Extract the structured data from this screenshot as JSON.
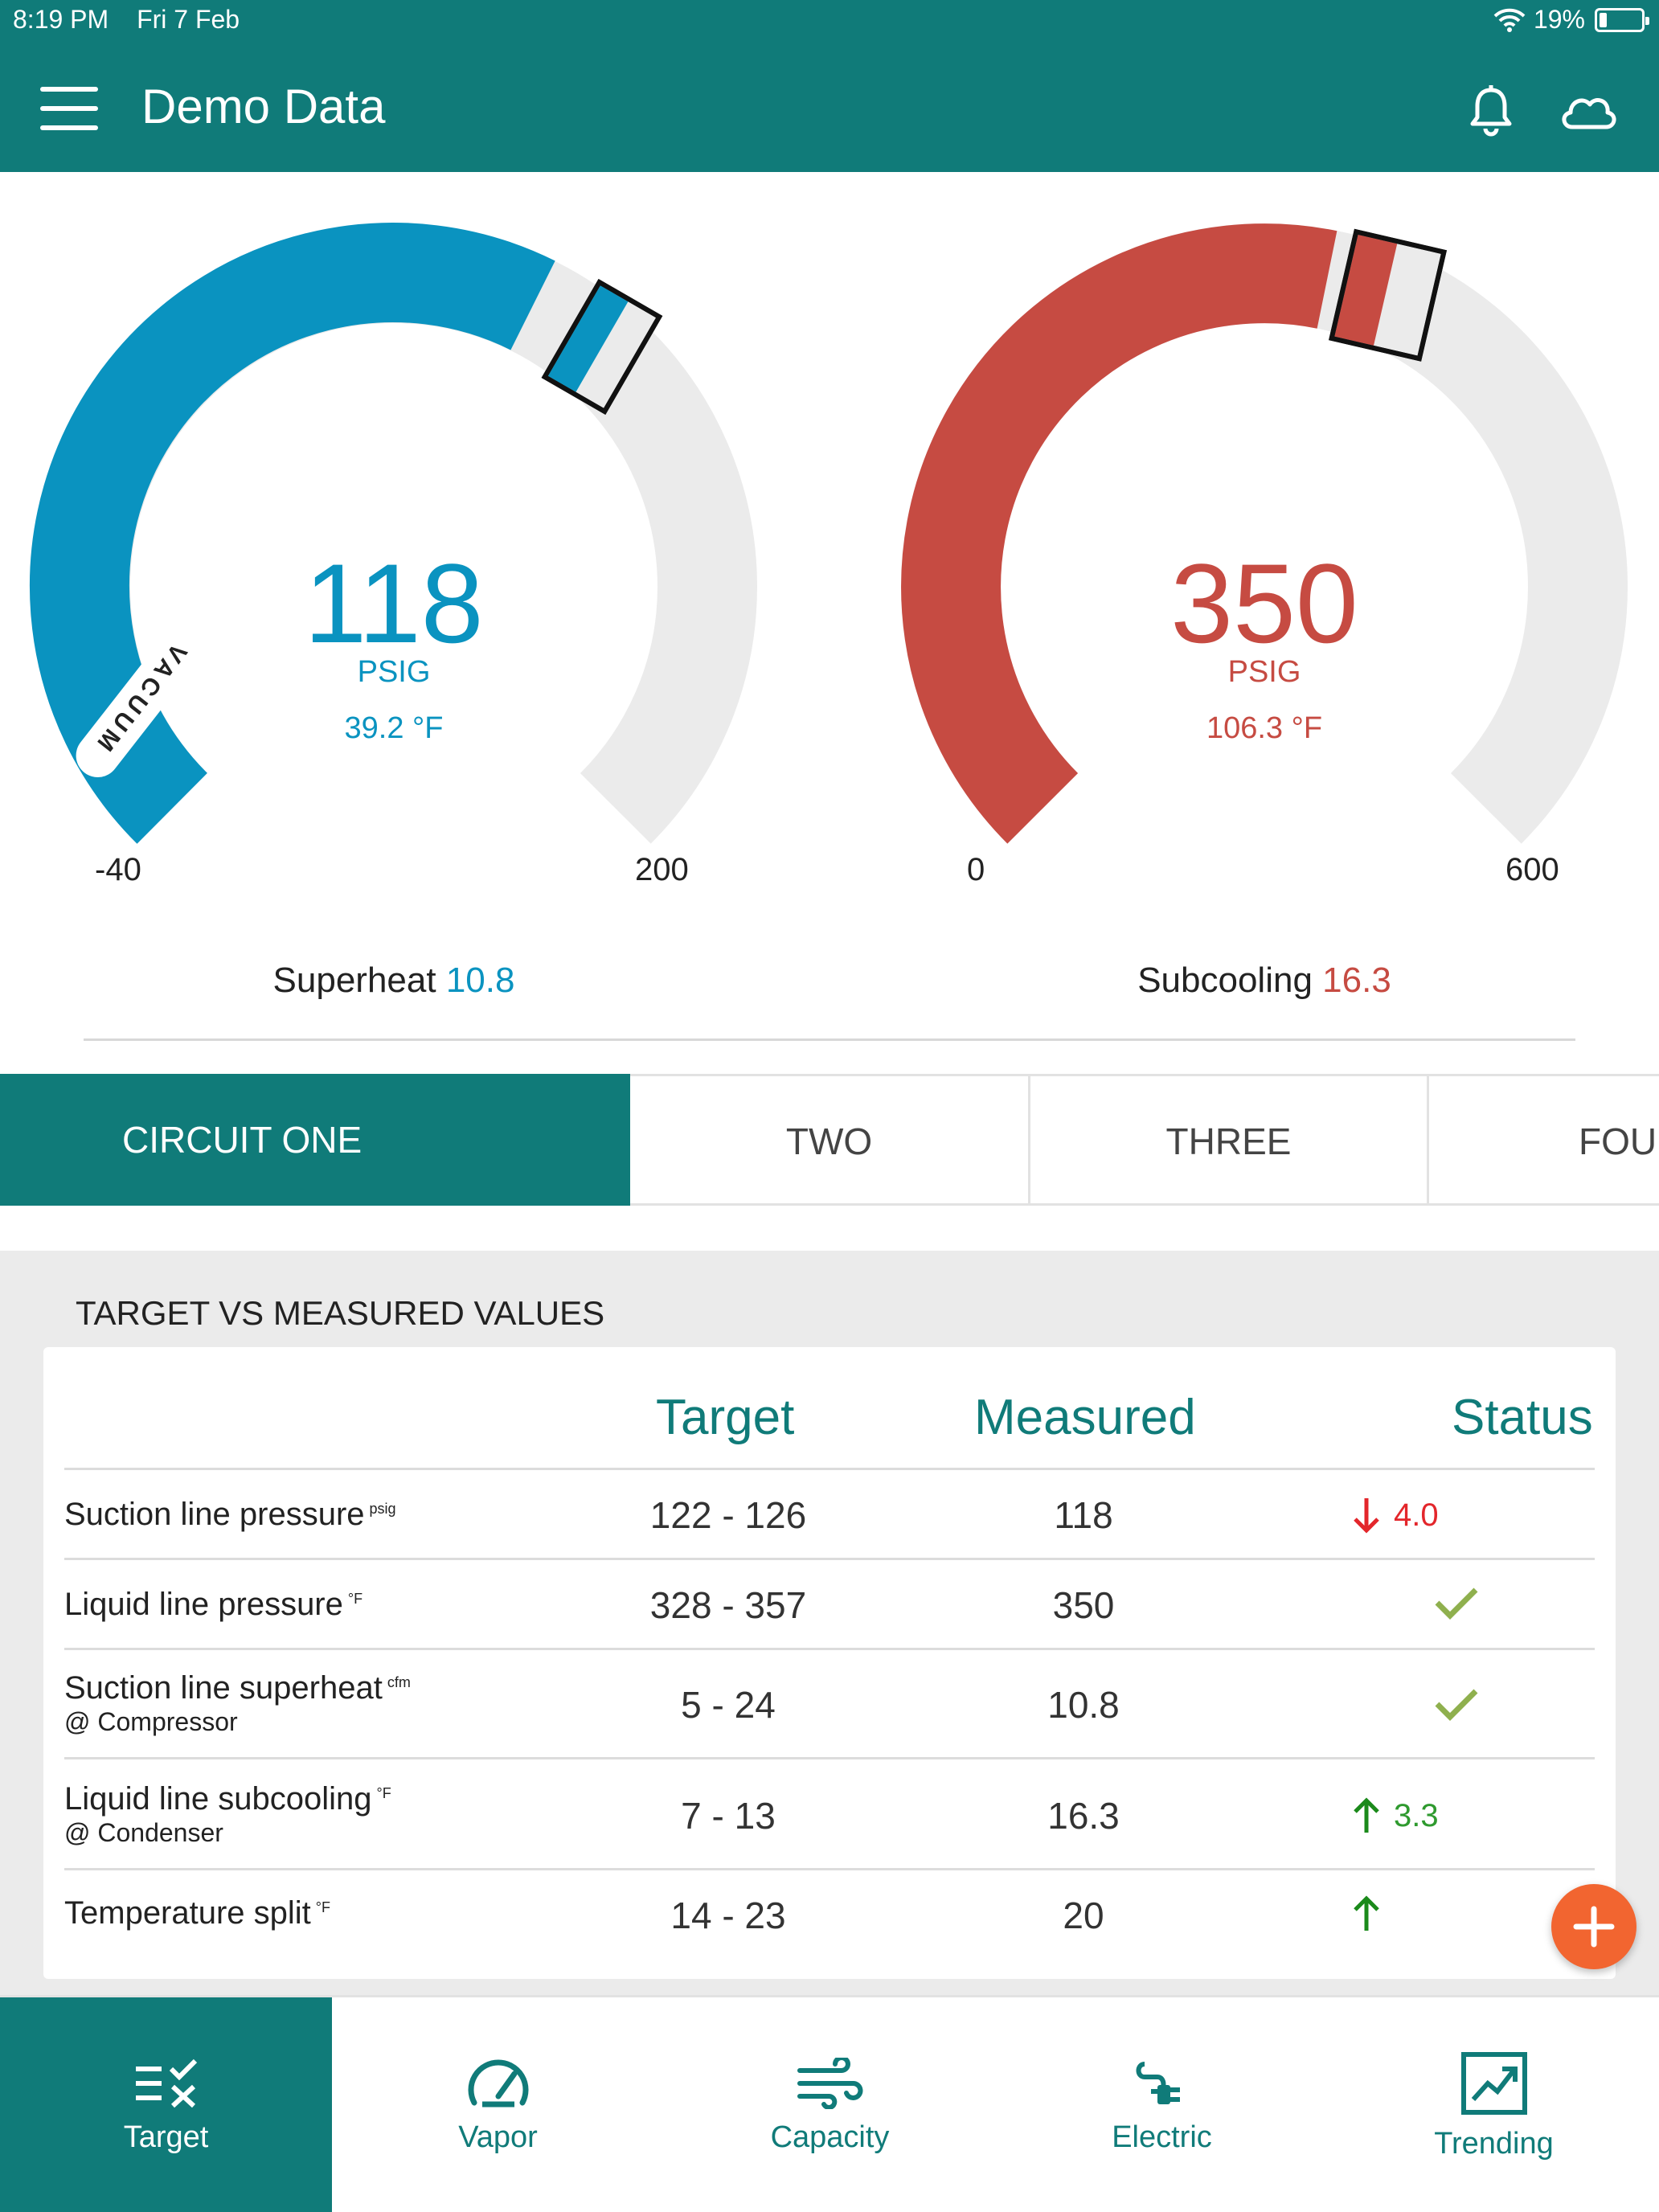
{
  "status_bar": {
    "time": "8:19 PM",
    "date": "Fri 7 Feb",
    "battery": "19%"
  },
  "header": {
    "title": "Demo Data",
    "icons": [
      "menu-icon",
      "bell-icon",
      "cloud-icon"
    ]
  },
  "gauges": [
    {
      "value": "118",
      "unit": "PSIG",
      "temperature": "39.2 °F",
      "min": "-40",
      "max": "200",
      "vacuum_label": "VACUUM",
      "footer_label": "Superheat",
      "footer_value": "10.8",
      "color": "#0a93c0"
    },
    {
      "value": "350",
      "unit": "PSIG",
      "temperature": "106.3 °F",
      "min": "0",
      "max": "600",
      "footer_label": "Subcooling",
      "footer_value": "16.3",
      "color": "#c64b42"
    }
  ],
  "tabs": [
    "CIRCUIT ONE",
    "TWO",
    "THREE",
    "FOUR"
  ],
  "table": {
    "section_title": "TARGET VS MEASURED VALUES",
    "headers": {
      "target": "Target",
      "measured": "Measured",
      "status": "Status"
    },
    "rows": [
      {
        "label": "Suction line pressure",
        "unit": "psig",
        "sub": "",
        "target": "122 - 126",
        "measured": "118",
        "status": "4.0",
        "status_type": "down"
      },
      {
        "label": "Liquid line pressure",
        "unit": "°F",
        "sub": "",
        "target": "328 - 357",
        "measured": "350",
        "status": "",
        "status_type": "ok"
      },
      {
        "label": "Suction line superheat",
        "unit": "cfm",
        "sub": "@ Compressor",
        "target": "5 - 24",
        "measured": "10.8",
        "status": "",
        "status_type": "ok"
      },
      {
        "label": "Liquid line subcooling",
        "unit": "°F",
        "sub": "@ Condenser",
        "target": "7 - 13",
        "measured": "16.3",
        "status": "3.3",
        "status_type": "up"
      },
      {
        "label": "Temperature split",
        "unit": "°F",
        "sub": "",
        "target": "14 - 23",
        "measured": "20",
        "status": "",
        "status_type": "up"
      }
    ]
  },
  "bottom_nav": [
    {
      "label": "Target",
      "icon": "target-list-icon",
      "active": true
    },
    {
      "label": "Vapor",
      "icon": "gauge-icon",
      "active": false
    },
    {
      "label": "Capacity",
      "icon": "wind-icon",
      "active": false
    },
    {
      "label": "Electric",
      "icon": "plug-icon",
      "active": false
    },
    {
      "label": "Trending",
      "icon": "trending-chart-icon",
      "active": false
    }
  ],
  "colors": {
    "primary": "#107b79",
    "accent": "#f26530",
    "blue": "#0a93c0",
    "red": "#c64b42"
  }
}
